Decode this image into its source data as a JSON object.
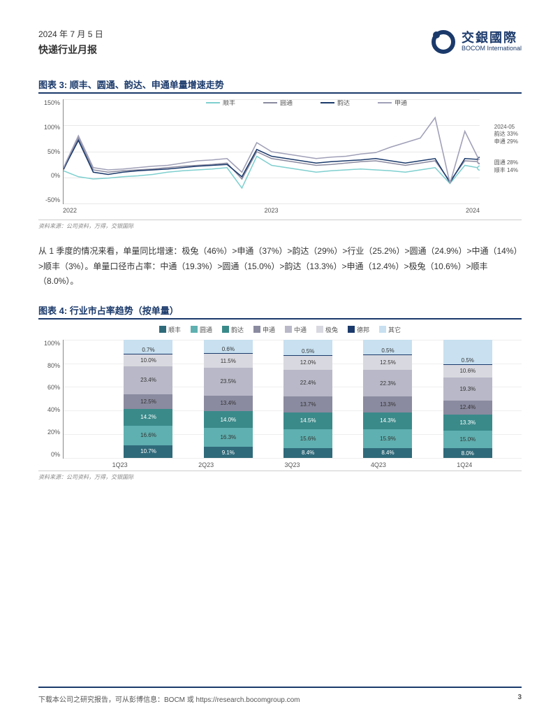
{
  "header": {
    "date": "2024 年 7 月 5 日",
    "title": "快递行业月报",
    "logo_cn": "交銀國際",
    "logo_en": "BOCOM International"
  },
  "chart3": {
    "title": "图表 3: 顺丰、圆通、韵达、申通单量增速走势",
    "legend": [
      {
        "label": "顺丰",
        "color": "#7fcfcf"
      },
      {
        "label": "圆通",
        "color": "#8a8aa0"
      },
      {
        "label": "韵达",
        "color": "#1b3a6b"
      },
      {
        "label": "申通",
        "color": "#a0a0b8"
      }
    ],
    "yticks": [
      "150%",
      "100%",
      "50%",
      "0%",
      "-50%"
    ],
    "xticks": [
      "2022",
      "2023",
      "2024"
    ],
    "ylim": [
      -50,
      150
    ],
    "series": {
      "sf": [
        8,
        -5,
        -10,
        -8,
        -5,
        -3,
        0,
        5,
        8,
        10,
        12,
        15,
        -30,
        40,
        20,
        15,
        10,
        5,
        8,
        10,
        12,
        10,
        8,
        5,
        10,
        15,
        -20,
        20,
        14
      ],
      "yto": [
        10,
        80,
        10,
        5,
        8,
        10,
        12,
        15,
        18,
        20,
        22,
        25,
        -10,
        50,
        35,
        30,
        25,
        20,
        22,
        25,
        28,
        30,
        25,
        20,
        25,
        30,
        -15,
        30,
        28
      ],
      "yunda": [
        12,
        75,
        5,
        0,
        5,
        8,
        10,
        12,
        15,
        18,
        20,
        22,
        -5,
        55,
        40,
        35,
        30,
        25,
        28,
        30,
        32,
        35,
        30,
        25,
        30,
        35,
        -18,
        35,
        33
      ],
      "sto": [
        15,
        85,
        15,
        10,
        12,
        15,
        18,
        20,
        25,
        30,
        32,
        35,
        5,
        70,
        50,
        45,
        40,
        35,
        38,
        40,
        45,
        48,
        60,
        70,
        80,
        125,
        -20,
        95,
        29
      ]
    },
    "end_labels": {
      "header": "2024-05",
      "yunda": "韵达 33%",
      "sto": "申通 29%",
      "yto": "圆通 28%",
      "sf": "顺丰 14%"
    },
    "source": "资料来源：公司资料，万得，交银国际"
  },
  "body_text": "从 1 季度的情况来看，单量同比增速：极兔（46%）>申通（37%）>韵达（29%）>行业（25.2%）>圆通（24.9%）>中通（14%）>顺丰（3%）。单量口径市占率：中通（19.3%）>圆通（15.0%）>韵达（13.3%）>申通（12.4%）>极兔（10.6%）>顺丰（8.0%）。",
  "chart4": {
    "title": "图表 4: 行业市占率趋势（按单量）",
    "legend": [
      {
        "label": "顺丰",
        "color": "#2f6a7a"
      },
      {
        "label": "圆通",
        "color": "#5fb0b0"
      },
      {
        "label": "韵达",
        "color": "#3a8a8a"
      },
      {
        "label": "申通",
        "color": "#8a8aa0"
      },
      {
        "label": "中通",
        "color": "#b8b8c8"
      },
      {
        "label": "极兔",
        "color": "#d8d8e0"
      },
      {
        "label": "德邦",
        "color": "#1b3a6b"
      },
      {
        "label": "其它",
        "color": "#c8e0f0"
      }
    ],
    "yticks": [
      "100%",
      "80%",
      "60%",
      "40%",
      "20%",
      "0%"
    ],
    "xticks": [
      "1Q23",
      "2Q23",
      "3Q23",
      "4Q23",
      "1Q24"
    ],
    "bars": [
      {
        "x": "1Q23",
        "segs": [
          {
            "key": "sf",
            "v": 10.7,
            "label": "10.7%",
            "color": "#2f6a7a",
            "dark": true
          },
          {
            "key": "yto",
            "v": 16.6,
            "label": "16.6%",
            "color": "#5fb0b0"
          },
          {
            "key": "yunda",
            "v": 14.2,
            "label": "14.2%",
            "color": "#3a8a8a",
            "dark": true
          },
          {
            "key": "sto",
            "v": 12.5,
            "label": "12.5%",
            "color": "#8a8aa0"
          },
          {
            "key": "zto",
            "v": 23.4,
            "label": "23.4%",
            "color": "#b8b8c8"
          },
          {
            "key": "jt",
            "v": 10.0,
            "label": "10.0%",
            "color": "#d8d8e0"
          },
          {
            "key": "db",
            "v": 0.7,
            "label": "0.7%",
            "color": "#1b3a6b",
            "dark": true
          },
          {
            "key": "other",
            "v": 11.9,
            "label": "",
            "color": "#c8e0f0"
          }
        ]
      },
      {
        "x": "2Q23",
        "segs": [
          {
            "key": "sf",
            "v": 9.1,
            "label": "9.1%",
            "color": "#2f6a7a",
            "dark": true
          },
          {
            "key": "yto",
            "v": 16.3,
            "label": "16.3%",
            "color": "#5fb0b0"
          },
          {
            "key": "yunda",
            "v": 14.0,
            "label": "14.0%",
            "color": "#3a8a8a",
            "dark": true
          },
          {
            "key": "sto",
            "v": 13.4,
            "label": "13.4%",
            "color": "#8a8aa0"
          },
          {
            "key": "zto",
            "v": 23.5,
            "label": "23.5%",
            "color": "#b8b8c8"
          },
          {
            "key": "jt",
            "v": 11.5,
            "label": "11.5%",
            "color": "#d8d8e0"
          },
          {
            "key": "db",
            "v": 0.6,
            "label": "0.6%",
            "color": "#1b3a6b",
            "dark": true
          },
          {
            "key": "other",
            "v": 11.6,
            "label": "",
            "color": "#c8e0f0"
          }
        ]
      },
      {
        "x": "3Q23",
        "segs": [
          {
            "key": "sf",
            "v": 8.4,
            "label": "8.4%",
            "color": "#2f6a7a",
            "dark": true
          },
          {
            "key": "yto",
            "v": 15.6,
            "label": "15.6%",
            "color": "#5fb0b0"
          },
          {
            "key": "yunda",
            "v": 14.5,
            "label": "14.5%",
            "color": "#3a8a8a",
            "dark": true
          },
          {
            "key": "sto",
            "v": 13.7,
            "label": "13.7%",
            "color": "#8a8aa0"
          },
          {
            "key": "zto",
            "v": 22.4,
            "label": "22.4%",
            "color": "#b8b8c8"
          },
          {
            "key": "jt",
            "v": 12.0,
            "label": "12.0%",
            "color": "#d8d8e0"
          },
          {
            "key": "db",
            "v": 0.5,
            "label": "0.5%",
            "color": "#1b3a6b",
            "dark": true
          },
          {
            "key": "other",
            "v": 12.9,
            "label": "",
            "color": "#c8e0f0"
          }
        ]
      },
      {
        "x": "4Q23",
        "segs": [
          {
            "key": "sf",
            "v": 8.4,
            "label": "8.4%",
            "color": "#2f6a7a",
            "dark": true
          },
          {
            "key": "yto",
            "v": 15.9,
            "label": "15.9%",
            "color": "#5fb0b0"
          },
          {
            "key": "yunda",
            "v": 14.3,
            "label": "14.3%",
            "color": "#3a8a8a",
            "dark": true
          },
          {
            "key": "sto",
            "v": 13.3,
            "label": "13.3%",
            "color": "#8a8aa0"
          },
          {
            "key": "zto",
            "v": 22.3,
            "label": "22.3%",
            "color": "#b8b8c8"
          },
          {
            "key": "jt",
            "v": 12.5,
            "label": "12.5%",
            "color": "#d8d8e0"
          },
          {
            "key": "db",
            "v": 0.5,
            "label": "0.5%",
            "color": "#1b3a6b",
            "dark": true
          },
          {
            "key": "other",
            "v": 12.8,
            "label": "",
            "color": "#c8e0f0"
          }
        ]
      },
      {
        "x": "1Q24",
        "segs": [
          {
            "key": "sf",
            "v": 8.0,
            "label": "8.0%",
            "color": "#2f6a7a",
            "dark": true
          },
          {
            "key": "yto",
            "v": 15.0,
            "label": "15.0%",
            "color": "#5fb0b0"
          },
          {
            "key": "yunda",
            "v": 13.3,
            "label": "13.3%",
            "color": "#3a8a8a",
            "dark": true
          },
          {
            "key": "sto",
            "v": 12.4,
            "label": "12.4%",
            "color": "#8a8aa0"
          },
          {
            "key": "zto",
            "v": 19.3,
            "label": "19.3%",
            "color": "#b8b8c8"
          },
          {
            "key": "jt",
            "v": 10.6,
            "label": "10.6%",
            "color": "#d8d8e0"
          },
          {
            "key": "db",
            "v": 0.5,
            "label": "0.5%",
            "color": "#1b3a6b",
            "dark": true
          },
          {
            "key": "other",
            "v": 20.9,
            "label": "",
            "color": "#c8e0f0"
          }
        ]
      }
    ],
    "source": "资料来源：公司资料，万得，交银国际"
  },
  "footer": {
    "text": "下载本公司之研究报告，可从彭博信息：BOCM 或 https://research.bocomgroup.com",
    "page": "3"
  }
}
